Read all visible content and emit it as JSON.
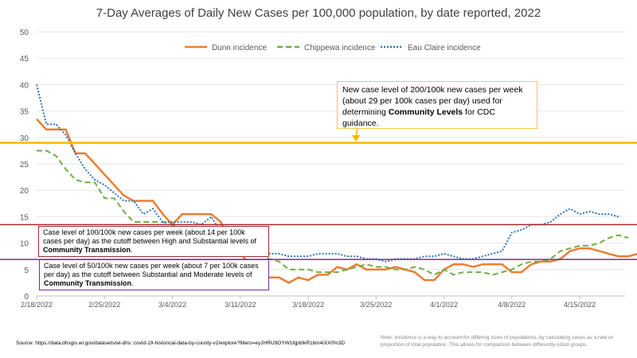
{
  "chart_data": {
    "type": "line",
    "title": "7-Day Averages of Daily New Cases per 100,000 population, by date reported, 2022",
    "start_date": "2/18/2022",
    "x_ticks": [
      "2/18/2022",
      "2/25/2022",
      "3/4/2022",
      "3/11/2022",
      "3/18/2022",
      "3/25/2022",
      "4/1/2022",
      "4/8/2022",
      "4/15/2022"
    ],
    "y_ticks": [
      0,
      5,
      10,
      15,
      20,
      25,
      30,
      35,
      40,
      45,
      50
    ],
    "ylim": [
      0,
      50
    ],
    "grid": true,
    "legend": "top",
    "series": [
      {
        "name": "Dunn incidence",
        "color": "#ED7D31",
        "style": "solid",
        "values": [
          33.5,
          31.5,
          31.5,
          31.5,
          27,
          27,
          25,
          23,
          21,
          19,
          18,
          18,
          18,
          15.5,
          13.5,
          15.5,
          15.5,
          15.5,
          15.5,
          14,
          10,
          8,
          6,
          4.5,
          3.5,
          3.5,
          2.5,
          3.5,
          3,
          4,
          4,
          5.5,
          5,
          6,
          5,
          5,
          5,
          5.5,
          5,
          4.5,
          3,
          3,
          5,
          6,
          6,
          5.5,
          6,
          6,
          6,
          4.5,
          4.5,
          6,
          6.5,
          6.5,
          7,
          8.5,
          9,
          9,
          8.5,
          8,
          7.5,
          7.5,
          8,
          8
        ]
      },
      {
        "name": "Chippewa incidence",
        "color": "#70AD47",
        "style": "dashed",
        "values": [
          27.5,
          27.5,
          26.5,
          24,
          22,
          21.5,
          21.5,
          18.5,
          18.5,
          16,
          14,
          14,
          14,
          14,
          13.5,
          12,
          9.5,
          11.5,
          12,
          10.5,
          8.5,
          9,
          9,
          8,
          7,
          6.5,
          5,
          5,
          5,
          4.5,
          4.5,
          4.5,
          5,
          5.5,
          6,
          5.5,
          5.5,
          5,
          5,
          5.5,
          5,
          4,
          5,
          4,
          4.5,
          4.5,
          4.5,
          4,
          4.5,
          5,
          6,
          6.5,
          6.5,
          7,
          8.5,
          9,
          9.5,
          9.5,
          10,
          11,
          11.5,
          11
        ]
      },
      {
        "name": "Eau Claire incidence",
        "color": "#2E75B6",
        "style": "dotted",
        "values": [
          40,
          32.5,
          32.5,
          30.5,
          27,
          24,
          22,
          21,
          19.5,
          18,
          18,
          15.5,
          16.5,
          14,
          14,
          14,
          14,
          13.5,
          15,
          12,
          11,
          10,
          9.5,
          9,
          8,
          8,
          7.5,
          7.5,
          7.5,
          8,
          8,
          8,
          7.5,
          7.5,
          7,
          7,
          6.5,
          7,
          7,
          7,
          7.5,
          7.5,
          8,
          7.5,
          7,
          7,
          7.5,
          8,
          8.5,
          12,
          12.5,
          13.5,
          13.5,
          14,
          15.5,
          16.5,
          15.5,
          16,
          15.5,
          15.5,
          15
        ]
      }
    ],
    "reference_lines": [
      {
        "value": 29,
        "color": "#F2B800",
        "label": "New case level of 200/100k new cases per week (about 29 per 100k cases per day) used for determining ",
        "bold": "Community Levels",
        "tail": " for CDC guidance."
      },
      {
        "value": 13.5,
        "color": "#A52A2A",
        "label": "Case level of 100/100k new cases per week (about 14 per 100k cases per day) as the cutoff between High and Substantial levels of ",
        "bold": "Community Transmission",
        "tail": "."
      },
      {
        "value": 6.9,
        "color": "#7030A0",
        "label": "Case level of 50/100k new cases per week (about 7 per 100k cases per day) as the cutoff between Substantial and Moderate levels of ",
        "bold": "Community Transmission",
        "tail": "."
      }
    ]
  },
  "footer": {
    "source": "Source: https://data.dhsgis.wi.gov/datasets/wi-dhs::covid-19-historical-data-by-county-v2/explore?filters=eyJHRU9OYW1lIjpbIkR1bm4iXX0%3D",
    "note": "Note:  Incidence is a way to account for differing sizes of populations, by calculating cases as a rate or proportion of total population.  This allows for comparison between differently-sized groups."
  }
}
